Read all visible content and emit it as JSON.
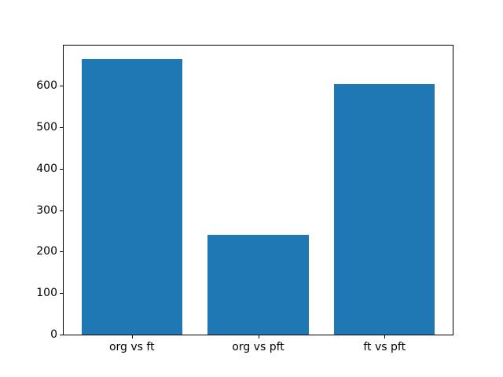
{
  "figure": {
    "background": "#ffffff",
    "text_color": "#000000",
    "spine_color": "#000000"
  },
  "chart_data": {
    "type": "bar",
    "title": "",
    "xlabel": "",
    "ylabel": "",
    "categories": [
      "org vs ft",
      "org vs pft",
      "ft vs pft"
    ],
    "values": [
      664,
      240,
      605
    ],
    "bar_color": "#1f77b4",
    "bar_width": 0.8,
    "xlim": [
      -0.54,
      2.54
    ],
    "ylim": [
      0,
      697
    ],
    "yticks": [
      0,
      100,
      200,
      300,
      400,
      500,
      600
    ],
    "grid": false,
    "legend_position": "none"
  }
}
